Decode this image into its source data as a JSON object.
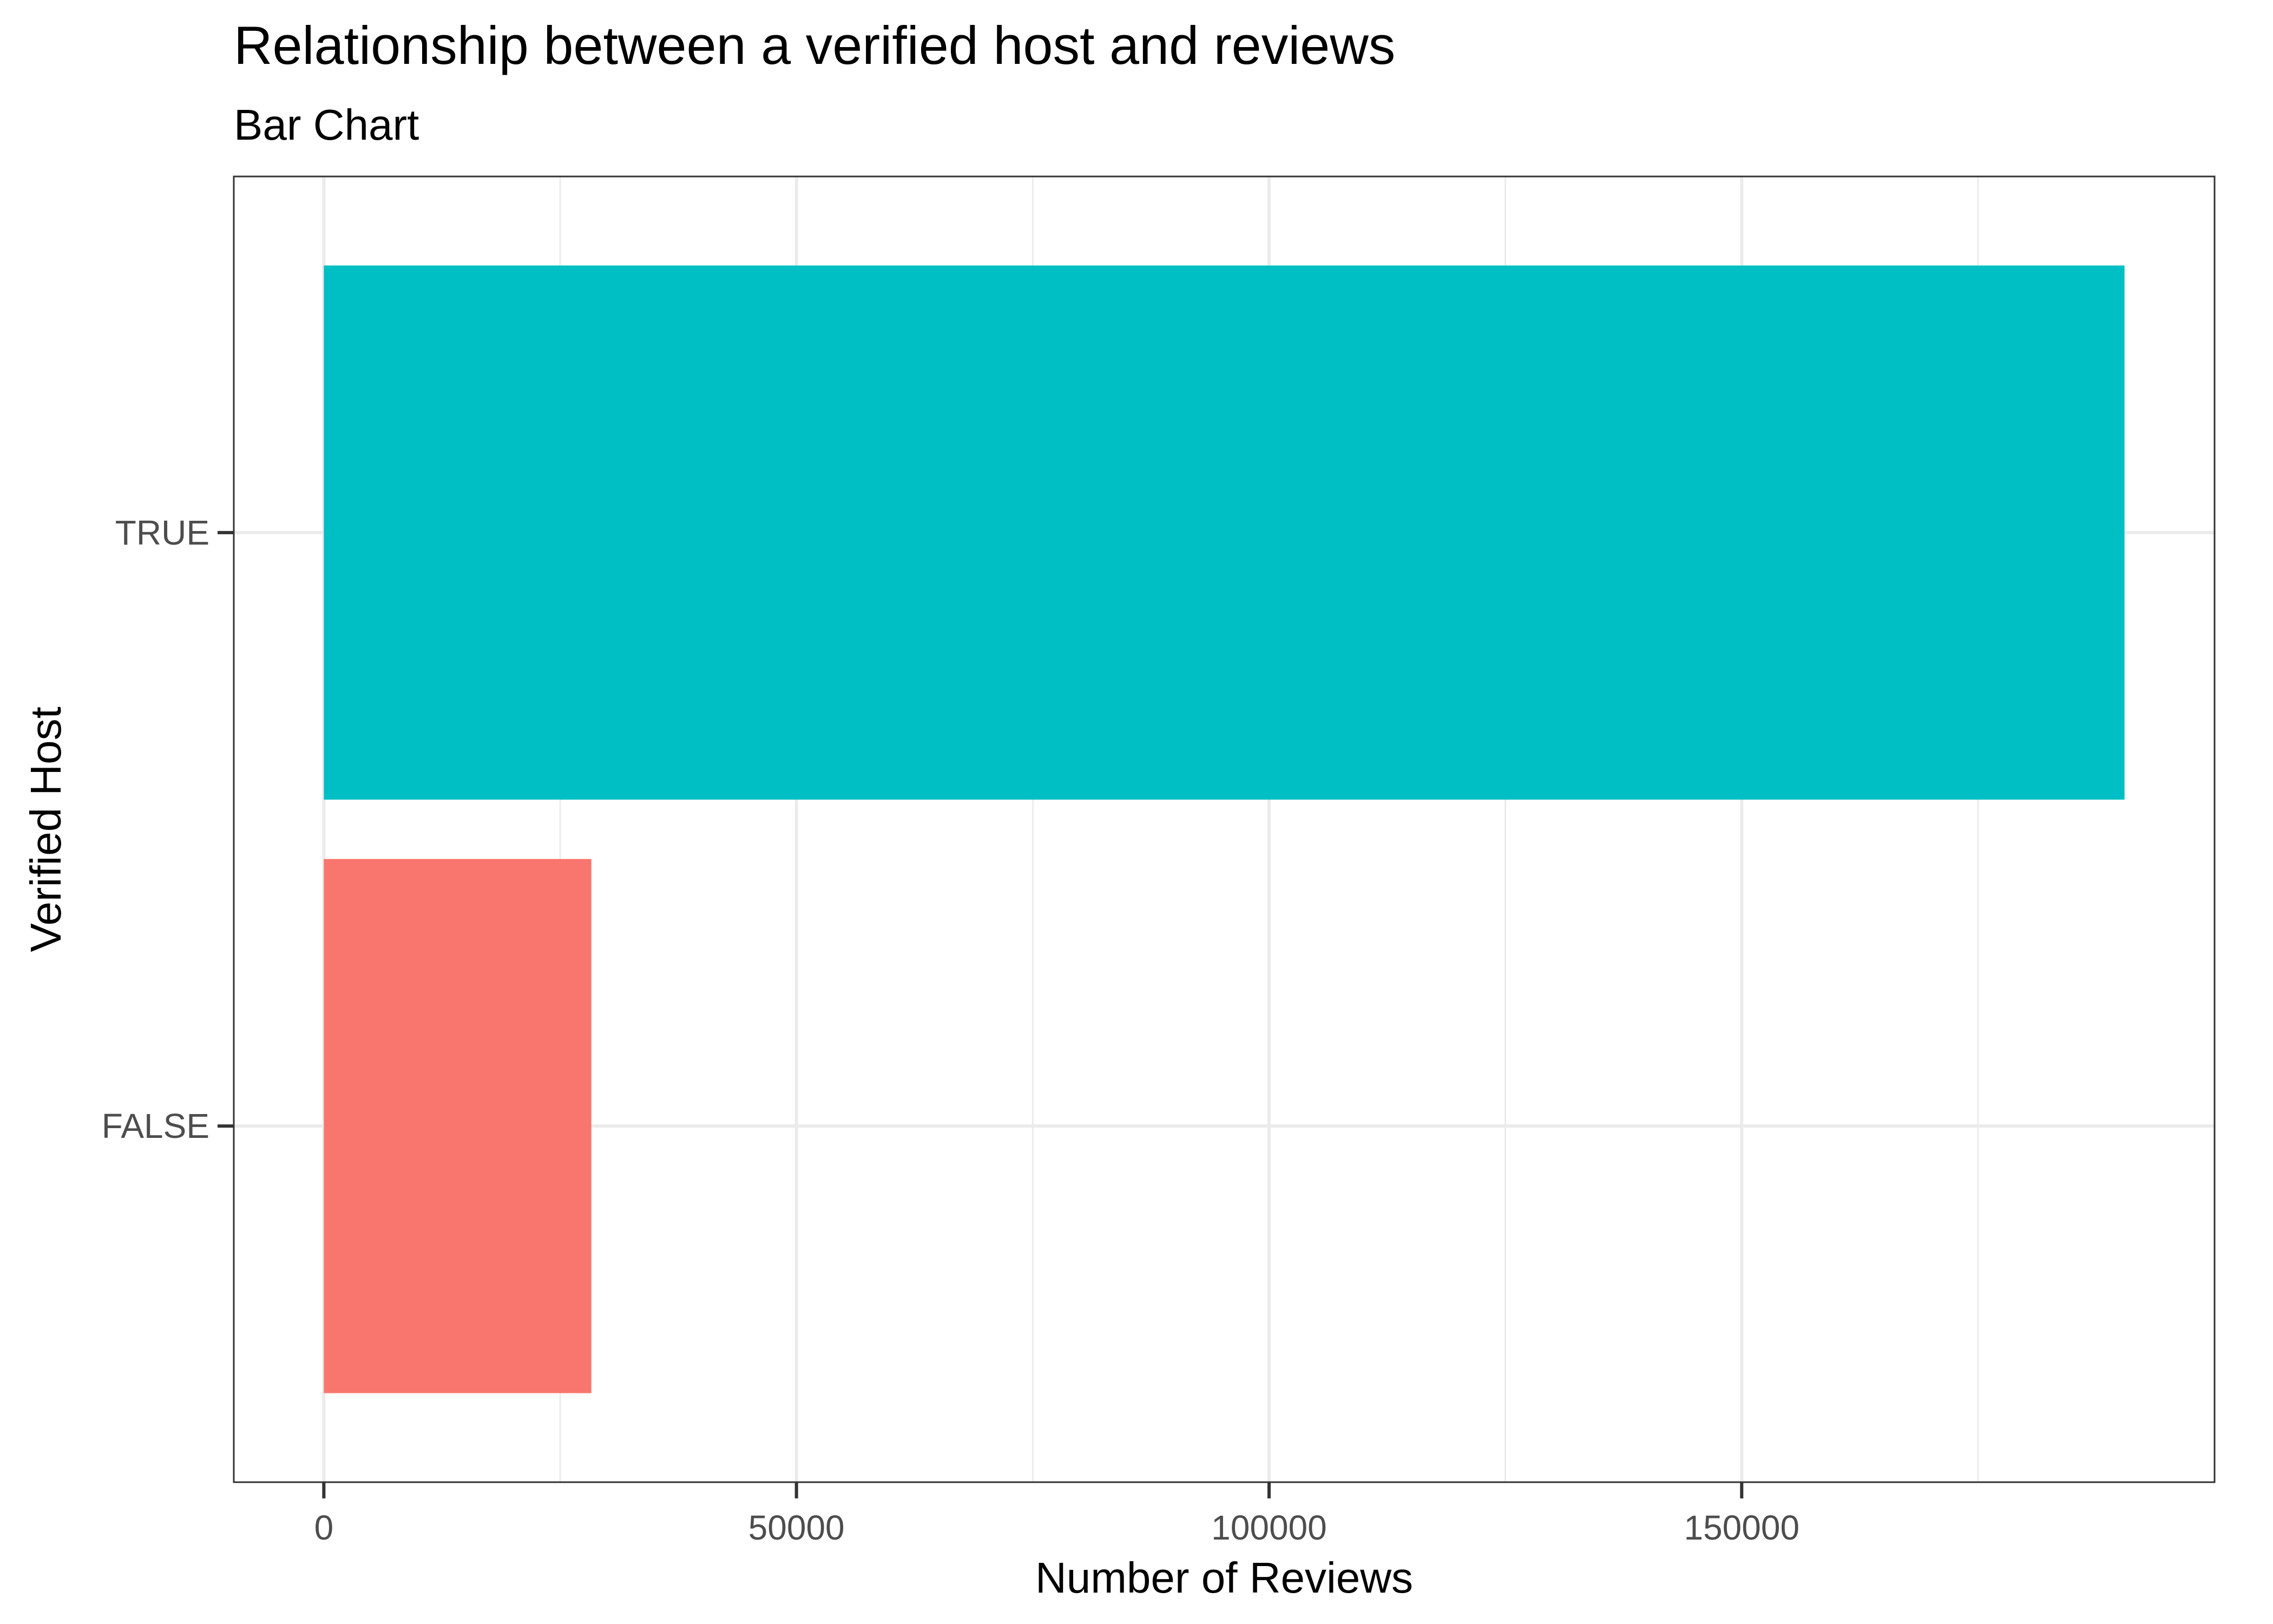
{
  "chart_data": {
    "type": "bar",
    "orientation": "horizontal",
    "title": "Relationship between a verified host and reviews",
    "subtitle": "Bar Chart",
    "xlabel": "Number of Reviews",
    "ylabel": "Verified Host",
    "categories": [
      "FALSE",
      "TRUE"
    ],
    "values": [
      28300,
      190500
    ],
    "colors": [
      "#F8766D",
      "#00BFC4"
    ],
    "xlim": [
      -9525,
      200025
    ],
    "xticks": [
      0,
      50000,
      100000,
      150000
    ],
    "xtick_labels": [
      "0",
      "50000",
      "100000",
      "150000"
    ],
    "grid": true,
    "legend": "none"
  }
}
